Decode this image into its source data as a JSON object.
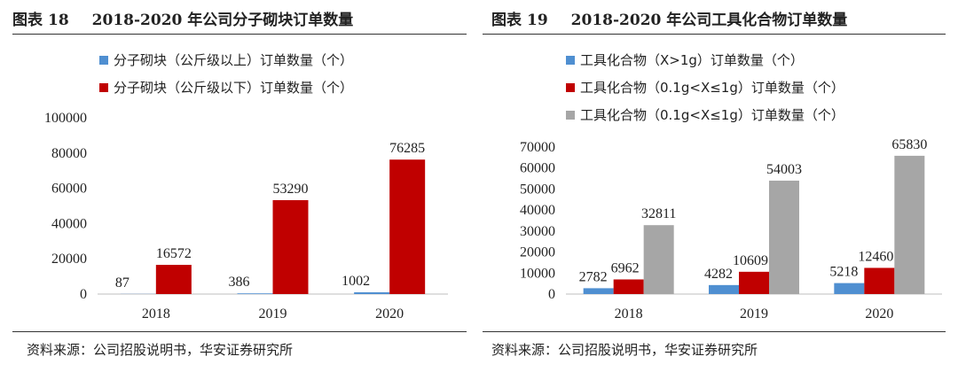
{
  "left": {
    "header_label": "图表",
    "header_number": "18",
    "header_title": "2018-2020 年公司分子砌块订单数量",
    "source": "资料来源：公司招股说明书，华安证券研究所"
  },
  "right": {
    "header_label": "图表",
    "header_number": "19",
    "header_title": "2018-2020 年公司工具化合物订单数量",
    "source": "资料来源：公司招股说明书，华安证券研究所"
  },
  "colors": {
    "blue": "#4f8fd1",
    "red": "#c00000",
    "gray": "#a6a6a6"
  },
  "chart_data": [
    {
      "type": "bar",
      "title": "2018-2020 年公司分子砌块订单数量",
      "categories": [
        "2018",
        "2019",
        "2020"
      ],
      "ylim": [
        0,
        100000
      ],
      "yticks": [
        0,
        20000,
        40000,
        60000,
        80000,
        100000
      ],
      "legend_position": "top-left",
      "series": [
        {
          "name": "分子砌块（公斤级以上）订单数量（个）",
          "color": "blue",
          "values": [
            87,
            386,
            1002
          ]
        },
        {
          "name": "分子砌块（公斤级以下）订单数量（个）",
          "color": "red",
          "values": [
            16572,
            53290,
            76285
          ]
        }
      ]
    },
    {
      "type": "bar",
      "title": "2018-2020 年公司工具化合物订单数量",
      "categories": [
        "2018",
        "2019",
        "2020"
      ],
      "ylim": [
        0,
        70000
      ],
      "yticks": [
        0,
        10000,
        20000,
        30000,
        40000,
        50000,
        60000,
        70000
      ],
      "legend_position": "top-left",
      "series": [
        {
          "name": "工具化合物（X>1g）订单数量（个）",
          "color": "blue",
          "values": [
            2782,
            4282,
            5218
          ]
        },
        {
          "name": "工具化合物（0.1g<X≤1g）订单数量（个）",
          "color": "red",
          "values": [
            6962,
            10609,
            12460
          ]
        },
        {
          "name": "工具化合物（0.1g<X≤1g）订单数量（个）",
          "color": "gray",
          "values": [
            32811,
            54003,
            65830
          ]
        }
      ]
    }
  ]
}
